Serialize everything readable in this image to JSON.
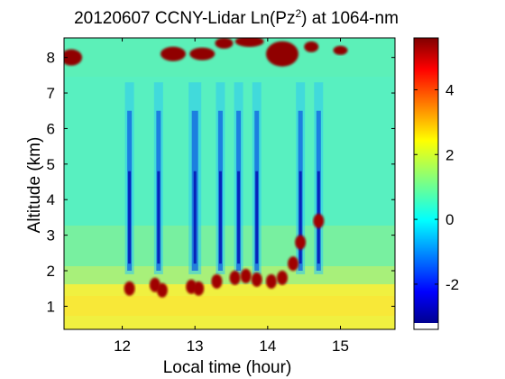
{
  "chart_data": {
    "type": "heatmap",
    "title_main": "20120607 CCNY-Lidar Ln(Pz",
    "title_sup": "2",
    "title_tail": ") at 1064-nm",
    "xlabel": "Local time (hour)",
    "ylabel": "Altitude (km)",
    "xlim": [
      11.2,
      15.75
    ],
    "ylim": [
      0.35,
      8.55
    ],
    "xticks": [
      "12",
      "13",
      "14",
      "15"
    ],
    "yticks": [
      "1",
      "2",
      "3",
      "4",
      "5",
      "6",
      "7",
      "8"
    ],
    "colorbar": {
      "range": [
        -3.2,
        5.6
      ],
      "ticks": [
        "-2",
        "0",
        "2",
        "4"
      ],
      "colormap": "jet"
    },
    "features": {
      "boundary_layer_top_km": 1.6,
      "low_signal_streak_times_hour": [
        12.1,
        12.5,
        13.0,
        13.35,
        13.6,
        13.85,
        14.45,
        14.7
      ],
      "cloud_layer_altitude_km": 8.1
    }
  }
}
